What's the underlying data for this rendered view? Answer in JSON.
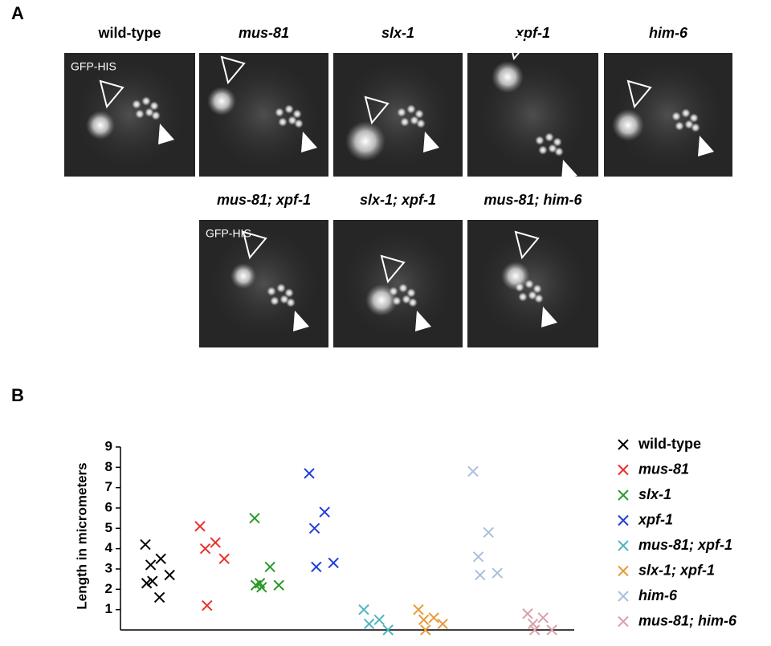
{
  "panel_a": {
    "label": "A",
    "stain": "GFP-HIS",
    "row1": [
      "wild-type",
      "mus-81",
      "slx-1",
      "xpf-1",
      "him-6"
    ],
    "row2": [
      "mus-81; xpf-1",
      "slx-1; xpf-1",
      "mus-81; him-6"
    ]
  },
  "panel_b": {
    "label": "B"
  },
  "chart_data": {
    "type": "scatter",
    "y_label": "Length in micrometers",
    "ylim": [
      0,
      9
    ],
    "yticks": [
      1,
      2,
      3,
      4,
      5,
      6,
      7,
      8,
      9
    ],
    "series": [
      {
        "name": "wild-type",
        "color": "#000000",
        "values": [
          4.2,
          3.5,
          3.2,
          2.7,
          2.4,
          2.3,
          1.6
        ]
      },
      {
        "name": "mus-81",
        "color": "#e8312a",
        "values": [
          5.1,
          4.3,
          4.0,
          3.5,
          1.2
        ]
      },
      {
        "name": "slx-1",
        "color": "#2a9a2a",
        "values": [
          5.5,
          3.1,
          2.3,
          2.2,
          2.1,
          2.2
        ]
      },
      {
        "name": "xpf-1",
        "color": "#1f3fd6",
        "values": [
          7.7,
          5.8,
          5.0,
          3.3,
          3.1
        ]
      },
      {
        "name": "mus-81; xpf-1",
        "color": "#4fb5c0",
        "values": [
          1.0,
          0.5,
          0.3,
          0.0
        ]
      },
      {
        "name": "slx-1; xpf-1",
        "color": "#e89a3a",
        "values": [
          1.0,
          0.6,
          0.5,
          0.3,
          0.0
        ]
      },
      {
        "name": "him-6",
        "color": "#a9bfdc",
        "values": [
          7.8,
          4.8,
          3.6,
          2.8,
          2.7
        ]
      },
      {
        "name": "mus-81; him-6",
        "color": "#d9a0a8",
        "values": [
          0.8,
          0.6,
          0.3,
          0.0,
          0.0
        ]
      }
    ]
  }
}
